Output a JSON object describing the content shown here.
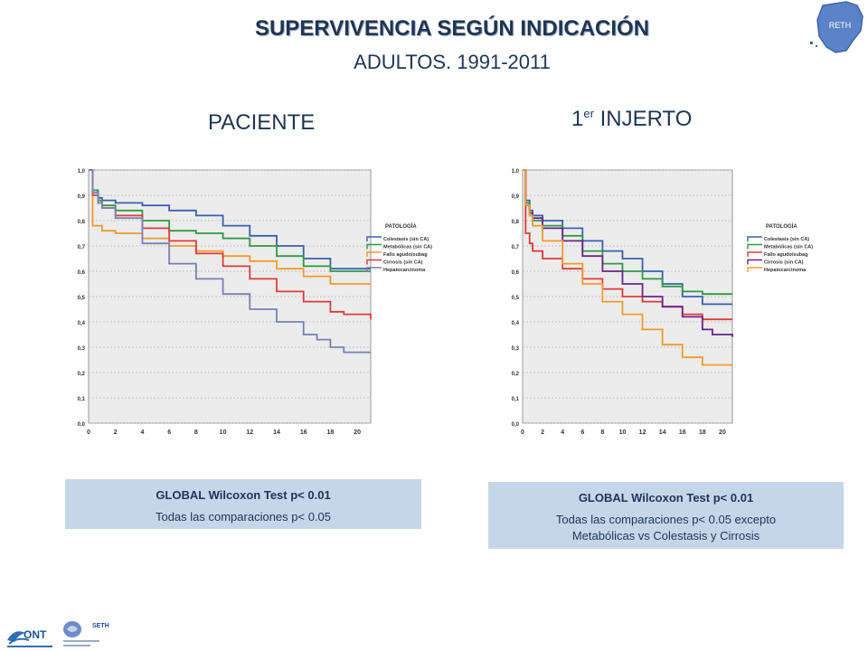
{
  "title": "SUPERVIVENCIA SEGÚN INDICACIÓN",
  "subtitle": "ADULTOS. 1991-2011",
  "panels": [
    {
      "title": "PACIENTE"
    },
    {
      "title_base": "1",
      "title_sup": "er",
      "title_rest": " INJERTO"
    }
  ],
  "logos": {
    "map_text": "RETH",
    "ont_text": "ONT",
    "seth_text": "SETH"
  },
  "stats": [
    {
      "title": "GLOBAL Wilcoxon Test  p< 0.01",
      "note": "Todas las comparaciones p< 0.05",
      "note2": ""
    },
    {
      "title": "GLOBAL Wilcoxon Test  p< 0.01",
      "note": "Todas las comparaciones p< 0.05 excepto",
      "note2": "Metabólicas vs Colestasis y Cirrosis"
    }
  ],
  "chart_data": [
    {
      "type": "line",
      "xlim": [
        0,
        21
      ],
      "ylim": [
        0,
        1
      ],
      "x_ticks": [
        0,
        2,
        4,
        6,
        8,
        10,
        12,
        14,
        16,
        18,
        20
      ],
      "y_ticks": [
        "0,0",
        "0,1",
        "0,2",
        "0,3",
        "0,4",
        "0,5",
        "0,6",
        "0,7",
        "0,8",
        "0,9",
        "1,0"
      ],
      "grid": true,
      "legend_title": "PATOLOGÍA",
      "legend_position": "right",
      "series": [
        {
          "name": "Colestasis (sin CA)",
          "color": "#3a5fb0",
          "x": [
            0,
            0.3,
            0.7,
            1,
            2,
            4,
            6,
            8,
            10,
            12,
            14,
            16,
            18,
            21
          ],
          "y": [
            1,
            0.92,
            0.89,
            0.88,
            0.87,
            0.86,
            0.84,
            0.82,
            0.78,
            0.74,
            0.7,
            0.65,
            0.61,
            0.61
          ]
        },
        {
          "name": "Metabólicas (sin CA)",
          "color": "#2e9944",
          "x": [
            0,
            0.3,
            0.7,
            1,
            2,
            4,
            6,
            8,
            10,
            12,
            14,
            16,
            18,
            21
          ],
          "y": [
            1,
            0.92,
            0.88,
            0.86,
            0.84,
            0.8,
            0.76,
            0.75,
            0.73,
            0.7,
            0.66,
            0.62,
            0.6,
            0.6
          ]
        },
        {
          "name": "Fallo agudo/subag",
          "color": "#f39a2c",
          "x": [
            0,
            0.3,
            1,
            2,
            4,
            6,
            8,
            10,
            12,
            14,
            16,
            18,
            21
          ],
          "y": [
            1,
            0.78,
            0.76,
            0.75,
            0.73,
            0.7,
            0.68,
            0.66,
            0.64,
            0.61,
            0.58,
            0.55,
            0.55
          ]
        },
        {
          "name": "Cirrosis (sin CA)",
          "color": "#e03a3a",
          "x": [
            0,
            0.3,
            0.7,
            1,
            2,
            4,
            6,
            8,
            10,
            12,
            14,
            16,
            18,
            19,
            21
          ],
          "y": [
            1,
            0.9,
            0.87,
            0.85,
            0.82,
            0.77,
            0.72,
            0.67,
            0.62,
            0.57,
            0.52,
            0.48,
            0.44,
            0.43,
            0.41
          ]
        },
        {
          "name": "Hepatocarcinoma",
          "color": "#7b7fb2",
          "x": [
            0,
            0.3,
            0.7,
            1,
            2,
            4,
            6,
            8,
            10,
            12,
            14,
            16,
            17,
            18,
            19,
            21
          ],
          "y": [
            1,
            0.91,
            0.87,
            0.85,
            0.81,
            0.71,
            0.63,
            0.57,
            0.51,
            0.45,
            0.4,
            0.35,
            0.33,
            0.3,
            0.28,
            0.28
          ]
        }
      ]
    },
    {
      "type": "line",
      "xlim": [
        0,
        21
      ],
      "ylim": [
        0,
        1
      ],
      "x_ticks": [
        0,
        2,
        4,
        6,
        8,
        10,
        12,
        14,
        16,
        18,
        20
      ],
      "y_ticks": [
        "0,0",
        "0,1",
        "0,2",
        "0,3",
        "0,4",
        "0,5",
        "0,6",
        "0,7",
        "0,8",
        "0,9",
        "1,0"
      ],
      "grid": true,
      "legend_title": "PATOLOGÍA",
      "legend_position": "right",
      "series": [
        {
          "name": "Colestasis (sin CA)",
          "color": "#3a5fb0",
          "x": [
            0,
            0.3,
            0.7,
            1,
            2,
            4,
            6,
            8,
            10,
            12,
            14,
            16,
            18,
            21
          ],
          "y": [
            1,
            0.88,
            0.84,
            0.82,
            0.8,
            0.77,
            0.72,
            0.68,
            0.65,
            0.6,
            0.55,
            0.5,
            0.47,
            0.47
          ]
        },
        {
          "name": "Metabólicas (sin CA)",
          "color": "#2e9944",
          "x": [
            0,
            0.3,
            0.7,
            1,
            2,
            4,
            6,
            8,
            10,
            12,
            14,
            16,
            18,
            21
          ],
          "y": [
            1,
            0.87,
            0.82,
            0.8,
            0.78,
            0.74,
            0.68,
            0.63,
            0.6,
            0.57,
            0.54,
            0.52,
            0.51,
            0.51
          ]
        },
        {
          "name": "Fallo agudo/subag",
          "color": "#e03a3a",
          "x": [
            0,
            0.3,
            0.7,
            1,
            2,
            4,
            6,
            8,
            10,
            12,
            14,
            16,
            18,
            21
          ],
          "y": [
            1,
            0.75,
            0.71,
            0.68,
            0.65,
            0.61,
            0.57,
            0.53,
            0.5,
            0.48,
            0.46,
            0.43,
            0.41,
            0.41
          ]
        },
        {
          "name": "Cirrosis (sin CA)",
          "color": "#6b2388",
          "x": [
            0,
            0.3,
            0.7,
            1,
            2,
            4,
            6,
            8,
            10,
            12,
            14,
            16,
            18,
            19,
            21
          ],
          "y": [
            1,
            0.86,
            0.83,
            0.81,
            0.77,
            0.72,
            0.66,
            0.6,
            0.55,
            0.5,
            0.46,
            0.42,
            0.37,
            0.35,
            0.34
          ]
        },
        {
          "name": "Hepatocarcinoma",
          "color": "#f39a2c",
          "x": [
            0,
            0.3,
            0.7,
            1,
            2,
            4,
            6,
            8,
            10,
            12,
            14,
            16,
            18,
            20,
            21
          ],
          "y": [
            1,
            0.86,
            0.82,
            0.78,
            0.72,
            0.63,
            0.55,
            0.48,
            0.43,
            0.37,
            0.31,
            0.26,
            0.23,
            0.23,
            0.23
          ]
        }
      ]
    }
  ]
}
